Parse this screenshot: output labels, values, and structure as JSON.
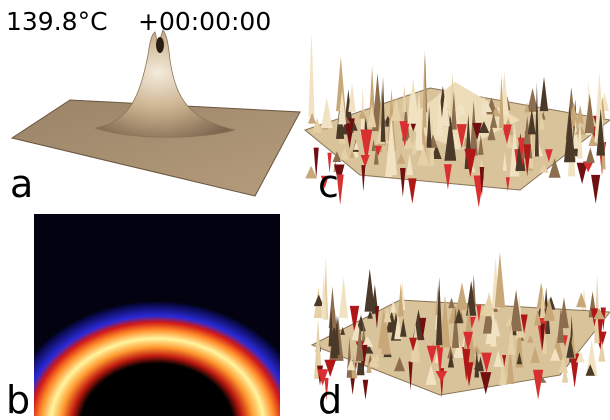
{
  "header": {
    "temperature": "139.8°C",
    "time": "+00:00:00"
  },
  "panels": [
    {
      "label": "a"
    },
    {
      "label": "b"
    },
    {
      "label": "c"
    },
    {
      "label": "d"
    }
  ]
}
